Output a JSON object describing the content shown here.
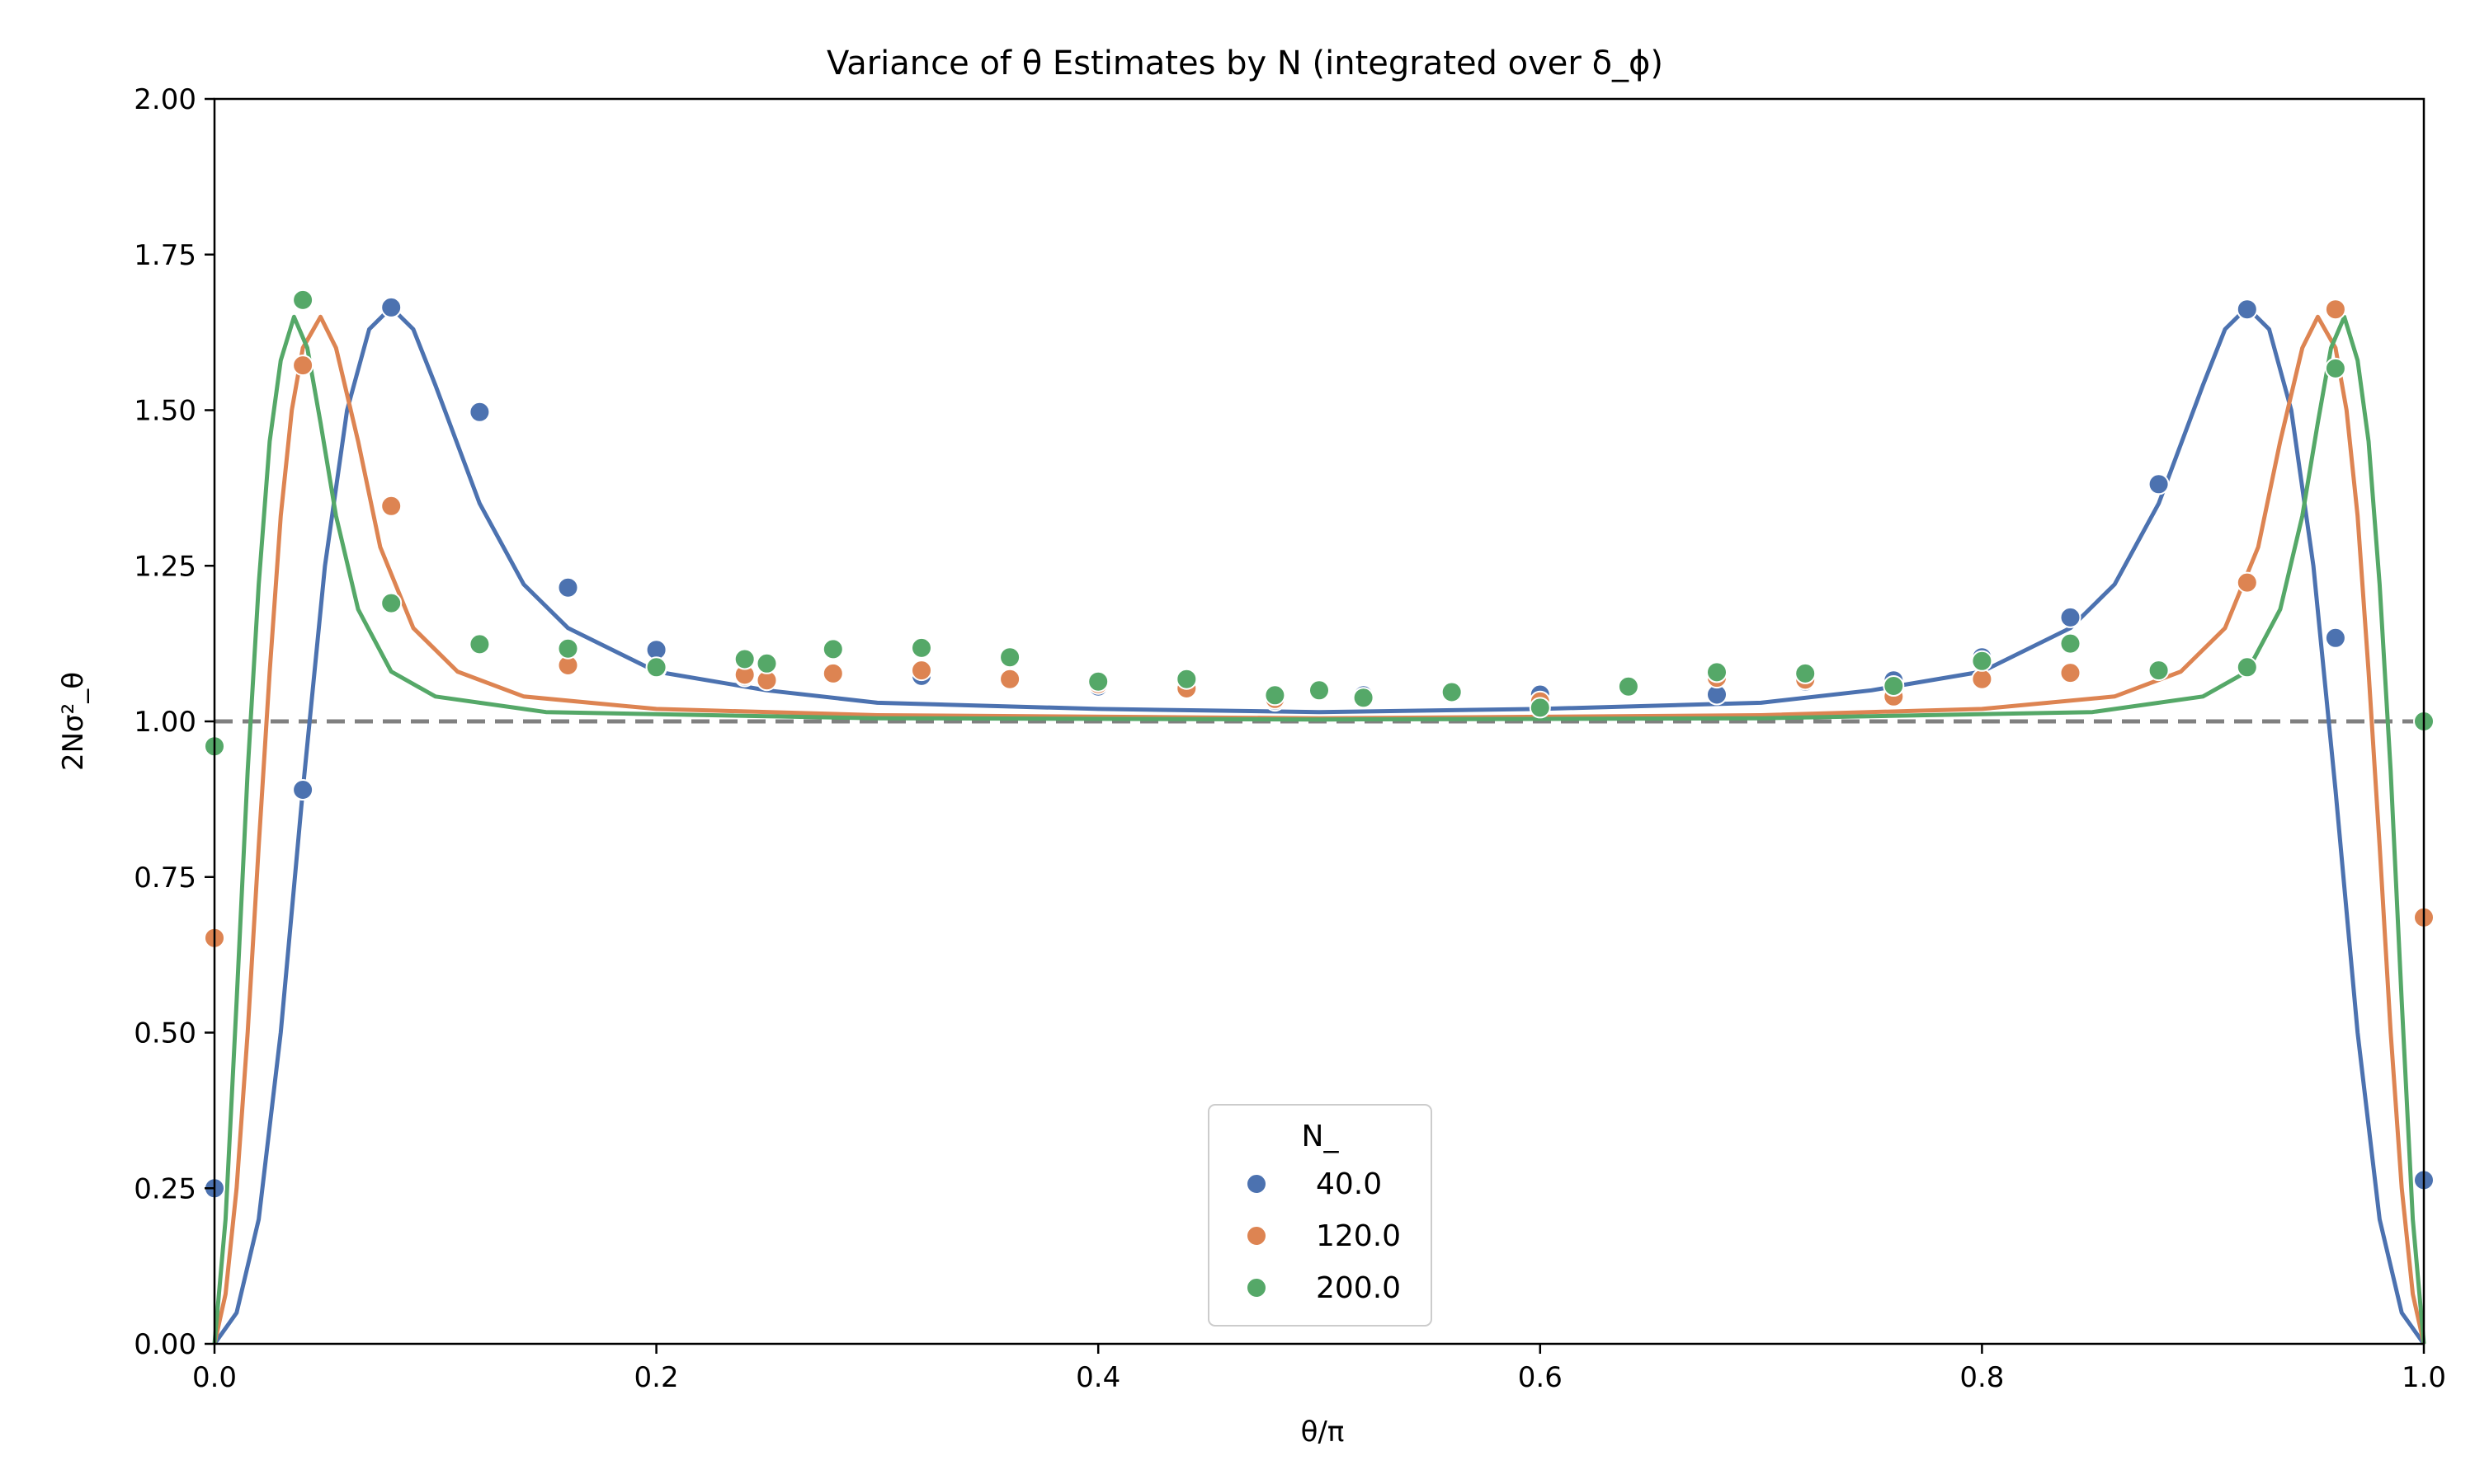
{
  "chart_data": {
    "type": "scatter",
    "title": "Variance of θ Estimates by N (integrated over δ_ϕ)",
    "xlabel": "θ/π",
    "ylabel": "2Nσ²_θ",
    "xlim": [
      0.0,
      1.0
    ],
    "ylim": [
      0.0,
      2.0
    ],
    "xticks": [
      "0.0",
      "0.2",
      "0.4",
      "0.6",
      "0.8",
      "1.0"
    ],
    "yticks": [
      "0.00",
      "0.25",
      "0.50",
      "0.75",
      "1.00",
      "1.25",
      "1.50",
      "1.75",
      "2.00"
    ],
    "reference_lines": [
      1.0,
      0.0
    ],
    "legend": {
      "title": "N_",
      "placement": "bottom-center"
    },
    "series": [
      {
        "name": "40.0",
        "color": "#4c72b0",
        "points": [
          [
            0.0,
            0.25
          ],
          [
            0.04,
            0.89
          ],
          [
            0.08,
            1.665
          ],
          [
            0.12,
            1.497
          ],
          [
            0.16,
            1.215
          ],
          [
            0.2,
            1.115
          ],
          [
            0.24,
            1.072
          ],
          [
            0.25,
            1.068
          ],
          [
            0.28,
            1.078
          ],
          [
            0.32,
            1.073
          ],
          [
            0.36,
            1.07
          ],
          [
            0.4,
            1.056
          ],
          [
            0.44,
            1.058
          ],
          [
            0.48,
            1.033
          ],
          [
            0.52,
            1.042
          ],
          [
            0.6,
            1.043
          ],
          [
            0.68,
            1.043
          ],
          [
            0.72,
            1.064
          ],
          [
            0.76,
            1.066
          ],
          [
            0.8,
            1.103
          ],
          [
            0.84,
            1.167
          ],
          [
            0.88,
            1.381
          ],
          [
            0.92,
            1.662
          ],
          [
            0.96,
            1.134
          ],
          [
            1.0,
            0.263
          ]
        ],
        "curve": [
          [
            0.0,
            0.0
          ],
          [
            0.01,
            0.05
          ],
          [
            0.02,
            0.2
          ],
          [
            0.03,
            0.5
          ],
          [
            0.04,
            0.89
          ],
          [
            0.05,
            1.25
          ],
          [
            0.06,
            1.5
          ],
          [
            0.07,
            1.63
          ],
          [
            0.08,
            1.665
          ],
          [
            0.09,
            1.63
          ],
          [
            0.1,
            1.54
          ],
          [
            0.12,
            1.35
          ],
          [
            0.14,
            1.22
          ],
          [
            0.16,
            1.15
          ],
          [
            0.2,
            1.08
          ],
          [
            0.25,
            1.05
          ],
          [
            0.3,
            1.03
          ],
          [
            0.4,
            1.02
          ],
          [
            0.5,
            1.015
          ],
          [
            0.6,
            1.02
          ],
          [
            0.7,
            1.03
          ],
          [
            0.75,
            1.05
          ],
          [
            0.8,
            1.08
          ],
          [
            0.84,
            1.15
          ],
          [
            0.86,
            1.22
          ],
          [
            0.88,
            1.35
          ],
          [
            0.9,
            1.54
          ],
          [
            0.91,
            1.63
          ],
          [
            0.92,
            1.665
          ],
          [
            0.93,
            1.63
          ],
          [
            0.94,
            1.5
          ],
          [
            0.95,
            1.25
          ],
          [
            0.96,
            0.89
          ],
          [
            0.97,
            0.5
          ],
          [
            0.98,
            0.2
          ],
          [
            0.99,
            0.05
          ],
          [
            1.0,
            0.0
          ]
        ]
      },
      {
        "name": "120.0",
        "color": "#dd8452",
        "points": [
          [
            0.0,
            0.652
          ],
          [
            0.04,
            1.572
          ],
          [
            0.08,
            1.346
          ],
          [
            0.16,
            1.09
          ],
          [
            0.2,
            1.085
          ],
          [
            0.24,
            1.075
          ],
          [
            0.25,
            1.066
          ],
          [
            0.28,
            1.077
          ],
          [
            0.32,
            1.082
          ],
          [
            0.36,
            1.068
          ],
          [
            0.4,
            1.06
          ],
          [
            0.44,
            1.053
          ],
          [
            0.48,
            1.036
          ],
          [
            0.52,
            1.037
          ],
          [
            0.6,
            1.032
          ],
          [
            0.68,
            1.07
          ],
          [
            0.72,
            1.067
          ],
          [
            0.76,
            1.04
          ],
          [
            0.8,
            1.068
          ],
          [
            0.84,
            1.078
          ],
          [
            0.92,
            1.223
          ],
          [
            0.96,
            1.662
          ],
          [
            1.0,
            0.685
          ]
        ],
        "curve": [
          [
            0.0,
            0.0
          ],
          [
            0.005,
            0.08
          ],
          [
            0.01,
            0.25
          ],
          [
            0.015,
            0.5
          ],
          [
            0.02,
            0.8
          ],
          [
            0.025,
            1.08
          ],
          [
            0.03,
            1.33
          ],
          [
            0.035,
            1.5
          ],
          [
            0.04,
            1.6
          ],
          [
            0.048,
            1.65
          ],
          [
            0.055,
            1.6
          ],
          [
            0.065,
            1.45
          ],
          [
            0.075,
            1.28
          ],
          [
            0.09,
            1.15
          ],
          [
            0.11,
            1.08
          ],
          [
            0.14,
            1.04
          ],
          [
            0.2,
            1.02
          ],
          [
            0.3,
            1.01
          ],
          [
            0.5,
            1.005
          ],
          [
            0.7,
            1.01
          ],
          [
            0.8,
            1.02
          ],
          [
            0.86,
            1.04
          ],
          [
            0.89,
            1.08
          ],
          [
            0.91,
            1.15
          ],
          [
            0.925,
            1.28
          ],
          [
            0.935,
            1.45
          ],
          [
            0.945,
            1.6
          ],
          [
            0.952,
            1.65
          ],
          [
            0.96,
            1.6
          ],
          [
            0.965,
            1.5
          ],
          [
            0.97,
            1.33
          ],
          [
            0.975,
            1.08
          ],
          [
            0.98,
            0.8
          ],
          [
            0.985,
            0.5
          ],
          [
            0.99,
            0.25
          ],
          [
            0.995,
            0.08
          ],
          [
            1.0,
            0.0
          ]
        ]
      },
      {
        "name": "200.0",
        "color": "#55a868",
        "points": [
          [
            0.0,
            0.96
          ],
          [
            0.04,
            1.677
          ],
          [
            0.08,
            1.19
          ],
          [
            0.12,
            1.124
          ],
          [
            0.16,
            1.117
          ],
          [
            0.2,
            1.087
          ],
          [
            0.24,
            1.1
          ],
          [
            0.25,
            1.093
          ],
          [
            0.28,
            1.116
          ],
          [
            0.32,
            1.118
          ],
          [
            0.36,
            1.103
          ],
          [
            0.4,
            1.064
          ],
          [
            0.44,
            1.068
          ],
          [
            0.48,
            1.042
          ],
          [
            0.5,
            1.05
          ],
          [
            0.52,
            1.038
          ],
          [
            0.56,
            1.047
          ],
          [
            0.6,
            1.022
          ],
          [
            0.64,
            1.056
          ],
          [
            0.68,
            1.079
          ],
          [
            0.72,
            1.077
          ],
          [
            0.76,
            1.057
          ],
          [
            0.8,
            1.097
          ],
          [
            0.84,
            1.125
          ],
          [
            0.88,
            1.082
          ],
          [
            0.92,
            1.087
          ],
          [
            0.96,
            1.567
          ],
          [
            1.0,
            1.0
          ]
        ],
        "curve": [
          [
            0.0,
            0.0
          ],
          [
            0.005,
            0.2
          ],
          [
            0.01,
            0.55
          ],
          [
            0.015,
            0.92
          ],
          [
            0.02,
            1.22
          ],
          [
            0.025,
            1.45
          ],
          [
            0.03,
            1.58
          ],
          [
            0.036,
            1.65
          ],
          [
            0.042,
            1.6
          ],
          [
            0.048,
            1.48
          ],
          [
            0.055,
            1.33
          ],
          [
            0.065,
            1.18
          ],
          [
            0.08,
            1.08
          ],
          [
            0.1,
            1.04
          ],
          [
            0.15,
            1.015
          ],
          [
            0.3,
            1.005
          ],
          [
            0.5,
            1.003
          ],
          [
            0.7,
            1.005
          ],
          [
            0.85,
            1.015
          ],
          [
            0.9,
            1.04
          ],
          [
            0.92,
            1.08
          ],
          [
            0.935,
            1.18
          ],
          [
            0.945,
            1.33
          ],
          [
            0.952,
            1.48
          ],
          [
            0.958,
            1.6
          ],
          [
            0.964,
            1.65
          ],
          [
            0.97,
            1.58
          ],
          [
            0.975,
            1.45
          ],
          [
            0.98,
            1.22
          ],
          [
            0.985,
            0.92
          ],
          [
            0.99,
            0.55
          ],
          [
            0.995,
            0.2
          ],
          [
            1.0,
            0.0
          ]
        ]
      }
    ]
  }
}
